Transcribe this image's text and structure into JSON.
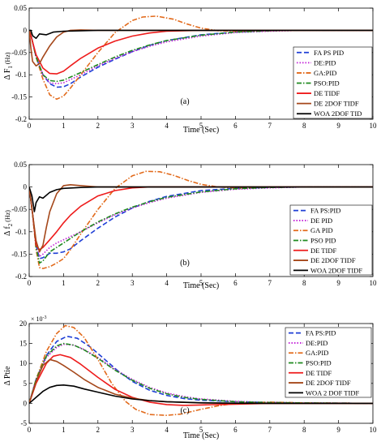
{
  "chart_data": [
    {
      "type": "line",
      "panel_label": "(a)",
      "xlabel": "Time (Sec)",
      "ylabel_main": "Δ F",
      "ylabel_sub": "1",
      "ylabel_unit": "(Hz)",
      "xlim": [
        0,
        10
      ],
      "ylim": [
        -0.2,
        0.05
      ],
      "xticks": [
        0,
        1,
        2,
        3,
        4,
        5,
        6,
        7,
        8,
        9,
        10
      ],
      "yticks": [
        -0.2,
        -0.15,
        -0.1,
        -0.05,
        0,
        0.05
      ],
      "ytick_labels": [
        "-0.2",
        "-0.15",
        "-0.1",
        "-0.05",
        "0",
        "0.05"
      ],
      "grid": false,
      "legend_position": "bottom-right",
      "series": [
        {
          "name": "FA PS PID",
          "color": "#1f3fd6",
          "dash": "dash",
          "x": [
            0,
            0.05,
            0.2,
            0.4,
            0.6,
            0.8,
            1,
            1.2,
            1.5,
            2,
            2.5,
            3,
            3.5,
            4,
            5,
            6,
            7,
            8,
            10
          ],
          "y": [
            0,
            -0.01,
            -0.06,
            -0.1,
            -0.12,
            -0.128,
            -0.127,
            -0.12,
            -0.105,
            -0.083,
            -0.065,
            -0.048,
            -0.034,
            -0.023,
            -0.01,
            -0.004,
            -0.001,
            0,
            0
          ]
        },
        {
          "name": "DE:PID",
          "color": "#c21fd8",
          "dash": "dot",
          "x": [
            0,
            0.05,
            0.2,
            0.4,
            0.6,
            0.8,
            1,
            1.5,
            2,
            2.5,
            3,
            3.5,
            4,
            5,
            6,
            7,
            8,
            10
          ],
          "y": [
            0,
            -0.01,
            -0.06,
            -0.1,
            -0.118,
            -0.12,
            -0.118,
            -0.1,
            -0.08,
            -0.063,
            -0.048,
            -0.036,
            -0.026,
            -0.013,
            -0.005,
            -0.002,
            0,
            0
          ]
        },
        {
          "name": "GA:PID",
          "color": "#e26a1b",
          "dash": "dashdot",
          "x": [
            0,
            0.05,
            0.2,
            0.4,
            0.6,
            0.8,
            1,
            1.2,
            1.5,
            2,
            2.5,
            3,
            3.3,
            3.7,
            4.2,
            4.6,
            5,
            5.5,
            6,
            7,
            8,
            10
          ],
          "y": [
            0,
            -0.01,
            -0.06,
            -0.11,
            -0.145,
            -0.155,
            -0.148,
            -0.13,
            -0.1,
            -0.05,
            -0.005,
            0.022,
            0.03,
            0.032,
            0.025,
            0.014,
            0.005,
            -0.001,
            -0.002,
            0,
            0,
            0
          ]
        },
        {
          "name": "PSO:PID",
          "color": "#1f8a1f",
          "dash": "dashdot",
          "x": [
            0,
            0.05,
            0.2,
            0.4,
            0.6,
            0.8,
            1,
            1.5,
            2,
            2.5,
            3,
            3.5,
            4,
            5,
            6,
            7,
            8,
            10
          ],
          "y": [
            0,
            -0.01,
            -0.06,
            -0.1,
            -0.113,
            -0.115,
            -0.112,
            -0.095,
            -0.077,
            -0.06,
            -0.045,
            -0.033,
            -0.023,
            -0.011,
            -0.004,
            -0.001,
            0,
            0
          ]
        },
        {
          "name": "DE TIDF",
          "color": "#ee1c1c",
          "dash": "solid",
          "x": [
            0,
            0.05,
            0.2,
            0.4,
            0.6,
            0.8,
            1,
            1.2,
            1.5,
            2,
            2.5,
            3,
            3.5,
            4,
            5,
            6,
            10
          ],
          "y": [
            0,
            -0.012,
            -0.055,
            -0.085,
            -0.097,
            -0.098,
            -0.092,
            -0.08,
            -0.063,
            -0.04,
            -0.024,
            -0.013,
            -0.006,
            -0.002,
            0,
            0,
            0
          ]
        },
        {
          "name": "DE 2DOF TIDF",
          "color": "#a5471a",
          "dash": "solid",
          "x": [
            0,
            0.05,
            0.1,
            0.2,
            0.3,
            0.4,
            0.6,
            0.8,
            1,
            1.2,
            1.5,
            2,
            3,
            10
          ],
          "y": [
            0,
            -0.04,
            -0.07,
            -0.08,
            -0.075,
            -0.06,
            -0.035,
            -0.015,
            -0.004,
            0,
            0.001,
            0,
            0,
            0
          ]
        },
        {
          "name": "WOA 2DOF TID",
          "color": "#000000",
          "dash": "solid",
          "x": [
            0,
            0.05,
            0.1,
            0.2,
            0.3,
            0.5,
            0.7,
            1,
            1.5,
            2,
            3,
            10
          ],
          "y": [
            0,
            0,
            -0.012,
            -0.018,
            -0.008,
            -0.01,
            -0.004,
            -0.002,
            -0.001,
            0,
            0,
            0
          ]
        }
      ]
    },
    {
      "type": "line",
      "panel_label": "(b)",
      "xlabel": "Time (Sec)",
      "ylabel_main": "Δ f",
      "ylabel_sub": "2",
      "ylabel_unit": "(Hz)",
      "xlim": [
        0,
        10
      ],
      "ylim": [
        -0.2,
        0.05
      ],
      "xticks": [
        0,
        1,
        2,
        3,
        4,
        5,
        6,
        7,
        8,
        9,
        10
      ],
      "yticks": [
        -0.2,
        -0.15,
        -0.1,
        -0.05,
        0,
        0.05
      ],
      "ytick_labels": [
        "-0.2",
        "-0.15",
        "-0.1",
        "-0.05",
        "0",
        "0.05"
      ],
      "grid": false,
      "legend_position": "bottom-right",
      "series": [
        {
          "name": "FA PS:PID",
          "color": "#1f3fd6",
          "dash": "dash",
          "x": [
            0,
            0.1,
            0.2,
            0.3,
            0.4,
            0.6,
            0.8,
            1,
            1.2,
            1.5,
            2,
            2.5,
            3,
            3.5,
            4,
            5,
            6,
            7,
            8,
            10
          ],
          "y": [
            0,
            -0.06,
            -0.13,
            -0.16,
            -0.158,
            -0.148,
            -0.148,
            -0.145,
            -0.138,
            -0.12,
            -0.092,
            -0.067,
            -0.047,
            -0.032,
            -0.021,
            -0.008,
            -0.003,
            -0.001,
            0,
            0
          ]
        },
        {
          "name": "DE PID",
          "color": "#c21fd8",
          "dash": "dot",
          "x": [
            0,
            0.1,
            0.2,
            0.3,
            0.4,
            0.6,
            0.8,
            1,
            1.5,
            2,
            2.5,
            3,
            3.5,
            4,
            5,
            6,
            7,
            8,
            10
          ],
          "y": [
            0,
            -0.06,
            -0.13,
            -0.155,
            -0.15,
            -0.135,
            -0.125,
            -0.118,
            -0.1,
            -0.08,
            -0.062,
            -0.047,
            -0.035,
            -0.025,
            -0.012,
            -0.005,
            -0.002,
            0,
            0
          ]
        },
        {
          "name": "GA PID",
          "color": "#e26a1b",
          "dash": "dashdot",
          "x": [
            0,
            0.1,
            0.2,
            0.3,
            0.4,
            0.6,
            0.8,
            1,
            1.2,
            1.5,
            2,
            2.5,
            3,
            3.4,
            3.8,
            4.2,
            4.6,
            5,
            5.5,
            6,
            7,
            10
          ],
          "y": [
            0,
            -0.06,
            -0.14,
            -0.18,
            -0.182,
            -0.178,
            -0.17,
            -0.16,
            -0.14,
            -0.105,
            -0.05,
            -0.003,
            0.025,
            0.035,
            0.034,
            0.026,
            0.015,
            0.006,
            0,
            -0.002,
            0,
            0
          ]
        },
        {
          "name": "PSO PID",
          "color": "#1f8a1f",
          "dash": "dashdot",
          "x": [
            0,
            0.1,
            0.2,
            0.3,
            0.4,
            0.6,
            0.8,
            1,
            1.5,
            2,
            2.5,
            3,
            3.5,
            4,
            5,
            6,
            7,
            8,
            10
          ],
          "y": [
            0,
            -0.06,
            -0.135,
            -0.17,
            -0.165,
            -0.145,
            -0.135,
            -0.125,
            -0.1,
            -0.078,
            -0.06,
            -0.045,
            -0.033,
            -0.023,
            -0.011,
            -0.004,
            -0.001,
            0,
            0
          ]
        },
        {
          "name": "DE TIDF",
          "color": "#ee1c1c",
          "dash": "solid",
          "x": [
            0,
            0.1,
            0.2,
            0.3,
            0.4,
            0.6,
            0.8,
            1,
            1.2,
            1.5,
            2,
            2.5,
            3,
            3.5,
            4,
            5,
            10
          ],
          "y": [
            0,
            -0.06,
            -0.13,
            -0.14,
            -0.135,
            -0.118,
            -0.1,
            -0.08,
            -0.063,
            -0.043,
            -0.02,
            -0.008,
            -0.002,
            0,
            0,
            0,
            0
          ]
        },
        {
          "name": "DE 2DOF TIDF",
          "color": "#a5471a",
          "dash": "solid",
          "x": [
            0,
            0.1,
            0.2,
            0.3,
            0.4,
            0.5,
            0.6,
            0.8,
            1,
            1.2,
            1.5,
            2,
            3,
            10
          ],
          "y": [
            0,
            -0.06,
            -0.12,
            -0.145,
            -0.13,
            -0.09,
            -0.055,
            -0.015,
            0.003,
            0.005,
            0.003,
            0,
            0,
            0
          ]
        },
        {
          "name": "WOA 2DOF TIDF",
          "color": "#000000",
          "dash": "solid",
          "x": [
            0,
            0.08,
            0.15,
            0.2,
            0.3,
            0.4,
            0.6,
            0.8,
            1,
            1.5,
            2,
            3,
            10
          ],
          "y": [
            0,
            -0.02,
            -0.055,
            -0.035,
            -0.022,
            -0.025,
            -0.012,
            -0.006,
            -0.003,
            -0.001,
            0,
            0,
            0
          ]
        }
      ]
    },
    {
      "type": "line",
      "panel_label": "(c)",
      "xlabel": "Time (Sec)",
      "ylabel_main": "Δ Ptie",
      "ylabel_sub": "",
      "ylabel_unit": "",
      "y_multiplier_base": "× 10",
      "y_multiplier_exp": "-3",
      "xlim": [
        0,
        10
      ],
      "ylim": [
        -5,
        20
      ],
      "xticks": [
        0,
        1,
        2,
        3,
        4,
        5,
        6,
        7,
        8,
        9,
        10
      ],
      "yticks": [
        -5,
        0,
        5,
        10,
        15,
        20
      ],
      "ytick_labels": [
        "-5",
        "0",
        "5",
        "10",
        "15",
        "20"
      ],
      "grid": false,
      "legend_position": "top-right",
      "series": [
        {
          "name": "FA PS:PID",
          "color": "#1f3fd6",
          "dash": "dash",
          "x": [
            0,
            0.2,
            0.5,
            0.8,
            1.1,
            1.4,
            1.8,
            2.2,
            2.6,
            3,
            3.5,
            4,
            4.5,
            5,
            6,
            7,
            8,
            10
          ],
          "y": [
            0,
            6,
            12,
            15.5,
            16.8,
            16.3,
            14,
            11,
            8,
            5.5,
            3.3,
            2,
            1.2,
            0.8,
            0.4,
            0.2,
            0.1,
            0
          ]
        },
        {
          "name": "DE:PID",
          "color": "#c21fd8",
          "dash": "dot",
          "x": [
            0,
            0.2,
            0.5,
            0.8,
            1,
            1.3,
            1.6,
            2,
            2.5,
            3,
            3.5,
            4,
            4.5,
            5,
            6,
            7,
            8,
            10
          ],
          "y": [
            0,
            6,
            11.5,
            14,
            14.8,
            14.6,
            13.5,
            11.5,
            8.5,
            6,
            4,
            2.6,
            1.7,
            1.1,
            0.5,
            0.2,
            0.1,
            0
          ]
        },
        {
          "name": "GA:PID",
          "color": "#e26a1b",
          "dash": "dashdot",
          "x": [
            0,
            0.2,
            0.5,
            0.8,
            1.05,
            1.3,
            1.6,
            2,
            2.4,
            2.8,
            3.1,
            3.5,
            4,
            4.4,
            5,
            5.5,
            6,
            7,
            8,
            10
          ],
          "y": [
            0,
            6,
            13,
            17.5,
            19.5,
            19,
            16.5,
            11,
            5,
            0.5,
            -1.5,
            -2.8,
            -3,
            -2.7,
            -1.5,
            -0.6,
            0,
            0.3,
            0.1,
            0
          ]
        },
        {
          "name": "PSO:PID",
          "color": "#1f8a1f",
          "dash": "dashdot",
          "x": [
            0,
            0.2,
            0.5,
            0.8,
            1,
            1.3,
            1.6,
            2,
            2.5,
            3,
            3.5,
            4,
            4.5,
            5,
            6,
            7,
            8,
            10
          ],
          "y": [
            0,
            6,
            11.8,
            14.4,
            15,
            14.6,
            13.4,
            11.3,
            8.3,
            5.8,
            3.8,
            2.4,
            1.5,
            1,
            0.4,
            0.2,
            0.1,
            0
          ]
        },
        {
          "name": "DE TIDF",
          "color": "#ee1c1c",
          "dash": "solid",
          "x": [
            0,
            0.2,
            0.5,
            0.7,
            0.9,
            1.2,
            1.5,
            2,
            2.5,
            3,
            3.5,
            4,
            4.5,
            5,
            6,
            7,
            8,
            10
          ],
          "y": [
            0,
            5,
            10,
            11.8,
            12.2,
            11.5,
            9.8,
            6.5,
            3.5,
            1.5,
            0.3,
            -0.3,
            -0.5,
            -0.4,
            -0.2,
            0,
            0,
            0
          ]
        },
        {
          "name": "DE 2DOF TIDF",
          "color": "#a5471a",
          "dash": "solid",
          "x": [
            0,
            0.2,
            0.4,
            0.6,
            0.8,
            1,
            1.3,
            1.6,
            2,
            2.5,
            3,
            3.5,
            4,
            5,
            6,
            7,
            8,
            10
          ],
          "y": [
            0,
            5.5,
            9.5,
            11,
            10.5,
            9.5,
            7.8,
            6,
            4,
            2.3,
            1.3,
            0.7,
            0.4,
            0.1,
            0,
            0,
            0,
            0
          ]
        },
        {
          "name": "WOA 2 DOF TIDF",
          "color": "#000000",
          "dash": "solid",
          "x": [
            0,
            0.2,
            0.4,
            0.6,
            0.8,
            1,
            1.3,
            1.6,
            2,
            2.5,
            3,
            3.5,
            4,
            5,
            6,
            7,
            8,
            10
          ],
          "y": [
            0,
            1.5,
            3,
            4,
            4.5,
            4.6,
            4.3,
            3.6,
            2.8,
            1.8,
            1.1,
            0.7,
            0.4,
            0.15,
            0.05,
            0,
            0,
            0
          ]
        }
      ]
    }
  ]
}
